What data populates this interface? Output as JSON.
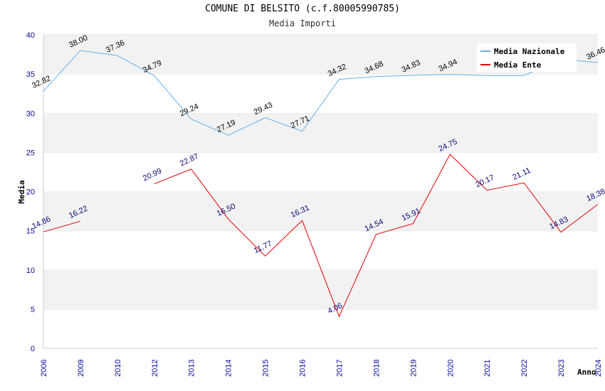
{
  "chart_data": {
    "type": "line",
    "title": "COMUNE DI BELSITO (c.f.80005990785)",
    "subtitle": "Media Importi",
    "xlabel": "Anno",
    "ylabel": "Media",
    "ylim": [
      0,
      40
    ],
    "yticks": [
      0,
      5,
      10,
      15,
      20,
      25,
      30,
      35,
      40
    ],
    "grid": true,
    "legend_position": "top-right",
    "categories": [
      "2006",
      "2009",
      "2010",
      "2012",
      "2013",
      "2014",
      "2015",
      "2016",
      "2017",
      "2018",
      "2019",
      "2020",
      "2021",
      "2022",
      "2023",
      "2024"
    ],
    "series": [
      {
        "name": "Media Nazionale",
        "color": "#6aaee8",
        "values": [
          32.82,
          38.0,
          37.36,
          34.79,
          29.24,
          27.19,
          29.43,
          27.71,
          34.32,
          34.68,
          34.83,
          34.94,
          34.8,
          34.8,
          36.9,
          36.46
        ],
        "labels": [
          "32.82",
          "38.00",
          "37.36",
          "34.79",
          "29.24",
          "27.19",
          "29.43",
          "27.71",
          "34.32",
          "34.68",
          "34.83",
          "34.94",
          "",
          "",
          "",
          "36.46"
        ]
      },
      {
        "name": "Media Ente",
        "color": "#e00000",
        "values": [
          14.86,
          16.22,
          null,
          20.99,
          22.87,
          16.5,
          11.77,
          16.31,
          4.06,
          14.54,
          15.91,
          24.75,
          20.17,
          21.11,
          14.83,
          18.38
        ],
        "labels": [
          "14.86",
          "16.22",
          "",
          "20.99",
          "22.87",
          "16.50",
          "11.77",
          "16.31",
          "4.06",
          "14.54",
          "15.91",
          "24.75",
          "20.17",
          "21.11",
          "14.83",
          "18.38"
        ]
      }
    ]
  }
}
